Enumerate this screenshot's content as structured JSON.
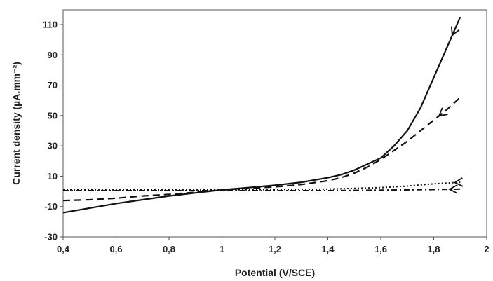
{
  "chart_data": {
    "type": "line",
    "xlabel": "Potential (V/SCE)",
    "ylabel": "Current density (µA.mm⁻²)",
    "xlim": [
      0.4,
      2.0
    ],
    "ylim": [
      -30,
      120
    ],
    "x_ticks": [
      "0,4",
      "0,6",
      "0,8",
      "1",
      "1,2",
      "1,4",
      "1,6",
      "1,8",
      "2"
    ],
    "x_tick_values": [
      0.4,
      0.6,
      0.8,
      1.0,
      1.2,
      1.4,
      1.6,
      1.8,
      2.0
    ],
    "y_ticks": [
      "-30",
      "-10",
      "10",
      "30",
      "50",
      "70",
      "90",
      "110"
    ],
    "y_tick_values": [
      -30,
      -10,
      10,
      30,
      50,
      70,
      90,
      110
    ],
    "grid": false,
    "legend": "none",
    "series": [
      {
        "style": "solid",
        "x": [
          0.4,
          0.5,
          0.6,
          0.7,
          0.8,
          0.9,
          1.0,
          1.1,
          1.2,
          1.3,
          1.4,
          1.45,
          1.5,
          1.55,
          1.6,
          1.65,
          1.7,
          1.75,
          1.8,
          1.85,
          1.9
        ],
        "y": [
          -14,
          -11,
          -8,
          -5.5,
          -3,
          -1,
          1,
          2.5,
          4,
          6,
          9,
          11,
          14,
          18,
          22,
          30,
          40,
          55,
          75,
          95,
          115
        ],
        "arrow_at": 1.87
      },
      {
        "style": "dashed",
        "x": [
          0.4,
          0.5,
          0.6,
          0.7,
          0.8,
          0.9,
          1.0,
          1.1,
          1.2,
          1.3,
          1.4,
          1.45,
          1.5,
          1.55,
          1.6,
          1.65,
          1.7,
          1.75,
          1.8,
          1.85,
          1.9
        ],
        "y": [
          -6,
          -5.5,
          -4.5,
          -3,
          -2,
          -0.5,
          1,
          2,
          3,
          4.5,
          7,
          9,
          12,
          16,
          21,
          27,
          33,
          40,
          47,
          54,
          62
        ],
        "arrow_at": 1.82
      },
      {
        "style": "dotted",
        "x": [
          0.4,
          0.6,
          0.8,
          1.0,
          1.2,
          1.4,
          1.6,
          1.7,
          1.8,
          1.9
        ],
        "y": [
          1,
          1,
          1,
          1,
          1.2,
          1.5,
          2.5,
          3.5,
          5,
          6
        ],
        "arrow_at": 1.88
      },
      {
        "style": "dash-dot",
        "x": [
          0.4,
          0.6,
          0.8,
          1.0,
          1.2,
          1.4,
          1.6,
          1.8,
          1.9
        ],
        "y": [
          0.5,
          0.5,
          0.5,
          0.5,
          0.5,
          0.5,
          0.8,
          1.2,
          1.5
        ],
        "arrow_at": 1.86
      }
    ]
  }
}
